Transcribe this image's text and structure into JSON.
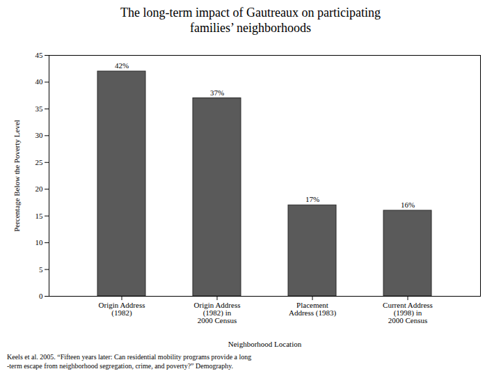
{
  "chart_data": {
    "type": "bar",
    "title": "The long-term impact of Gautreaux on participating\nfamilies’ neighborhoods",
    "categories": [
      "Origin Address\n(1982)",
      "Origin Address\n(1982) in\n2000 Census",
      "Placement\nAddress (1983)",
      "Current Address\n(1998) in\n2000 Census"
    ],
    "values": [
      42,
      37,
      17,
      16
    ],
    "value_labels": [
      "42%",
      "37%",
      "17%",
      "16%"
    ],
    "data_labels": true,
    "color": "#5a5a5a",
    "xlabel": "Neighborhood Location",
    "ylabel": "Percentage Below the Poverty Level",
    "ylim": [
      0,
      45
    ],
    "yticks": [
      0,
      5,
      10,
      15,
      20,
      25,
      30,
      35,
      40,
      45
    ],
    "grid": false,
    "footnote": "Keels et al. 2005. “Fifteen years later: Can residential mobility programs provide a long\n-term escape from neighborhood segregation, crime, and poverty?” Demography."
  }
}
